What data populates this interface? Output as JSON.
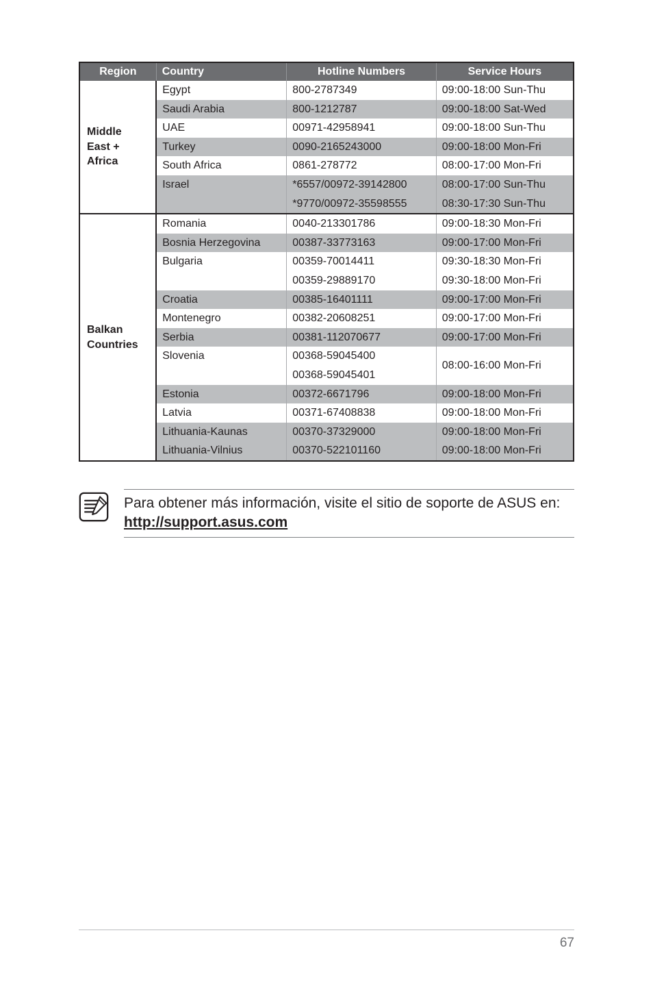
{
  "headers": {
    "region": "Region",
    "country": "Country",
    "hotline": "Hotline Numbers",
    "hours": "Service Hours"
  },
  "regions": [
    {
      "name": "Middle East + Africa",
      "rows": [
        {
          "shade": "light",
          "country": "Egypt",
          "hotline": "800-2787349",
          "hours": "09:00-18:00 Sun-Thu"
        },
        {
          "shade": "dark",
          "country": "Saudi Arabia",
          "hotline": "800-1212787",
          "hours": "09:00-18:00 Sat-Wed"
        },
        {
          "shade": "light",
          "country": "UAE",
          "hotline": "00971-42958941",
          "hours": "09:00-18:00 Sun-Thu"
        },
        {
          "shade": "dark",
          "country": "Turkey",
          "hotline": "0090-2165243000",
          "hours": "09:00-18:00 Mon-Fri"
        },
        {
          "shade": "light",
          "country": "South Africa",
          "hotline": "0861-278772",
          "hours": "08:00-17:00 Mon-Fri"
        },
        {
          "shade": "dark",
          "country": "Israel",
          "hotline": "*6557/00972-39142800",
          "hours": "08:00-17:00 Sun-Thu"
        },
        {
          "shade": "dark",
          "country": "",
          "hotline": "*9770/00972-35598555",
          "hours": "08:30-17:30 Sun-Thu"
        }
      ]
    },
    {
      "name": "Balkan Countries",
      "rows": [
        {
          "shade": "light",
          "country": "Romania",
          "hotline": "0040-213301786",
          "hours": "09:00-18:30 Mon-Fri"
        },
        {
          "shade": "dark",
          "country": "Bosnia Herzegovina",
          "hotline": "00387-33773163",
          "hours": "09:00-17:00 Mon-Fri"
        },
        {
          "shade": "light",
          "country": "Bulgaria",
          "hotline": "00359-70014411",
          "hours": "09:30-18:30 Mon-Fri"
        },
        {
          "shade": "light",
          "country": "",
          "hotline": "00359-29889170",
          "hours": "09:30-18:00 Mon-Fri"
        },
        {
          "shade": "dark",
          "country": "Croatia",
          "hotline": "00385-16401111",
          "hours": "09:00-17:00 Mon-Fri"
        },
        {
          "shade": "light",
          "country": "Montenegro",
          "hotline": "00382-20608251",
          "hours": "09:00-17:00 Mon-Fri"
        },
        {
          "shade": "dark",
          "country": "Serbia",
          "hotline": "00381-112070677",
          "hours": "09:00-17:00 Mon-Fri"
        },
        {
          "shade": "light",
          "country": "Slovenia",
          "hotline": "00368-59045400",
          "hours": "08:00-16:00 Mon-Fri",
          "hours_rowspan": 2
        },
        {
          "shade": "light",
          "country": "",
          "hotline": "00368-59045401",
          "skip_hours": true
        },
        {
          "shade": "dark",
          "country": "Estonia",
          "hotline": "00372-6671796",
          "hours": "09:00-18:00 Mon-Fri"
        },
        {
          "shade": "light",
          "country": "Latvia",
          "hotline": "00371-67408838",
          "hours": "09:00-18:00 Mon-Fri"
        },
        {
          "shade": "dark",
          "country": "Lithuania-Kaunas",
          "hotline": "00370-37329000",
          "hours": "09:00-18:00 Mon-Fri"
        },
        {
          "shade": "dark",
          "country": "Lithuania-Vilnius",
          "hotline": "00370-522101160",
          "hours": "09:00-18:00 Mon-Fri"
        }
      ]
    }
  ],
  "note": {
    "text_before": "Para obtener más información, visite el sitio de soporte de ASUS en: ",
    "link_text": "http://support.asus.com"
  },
  "page_number": "67",
  "colors": {
    "header_bg": "#6d6e71",
    "dark_row": "#bcbec0",
    "light_row": "#ffffff",
    "border": "#231f20"
  }
}
